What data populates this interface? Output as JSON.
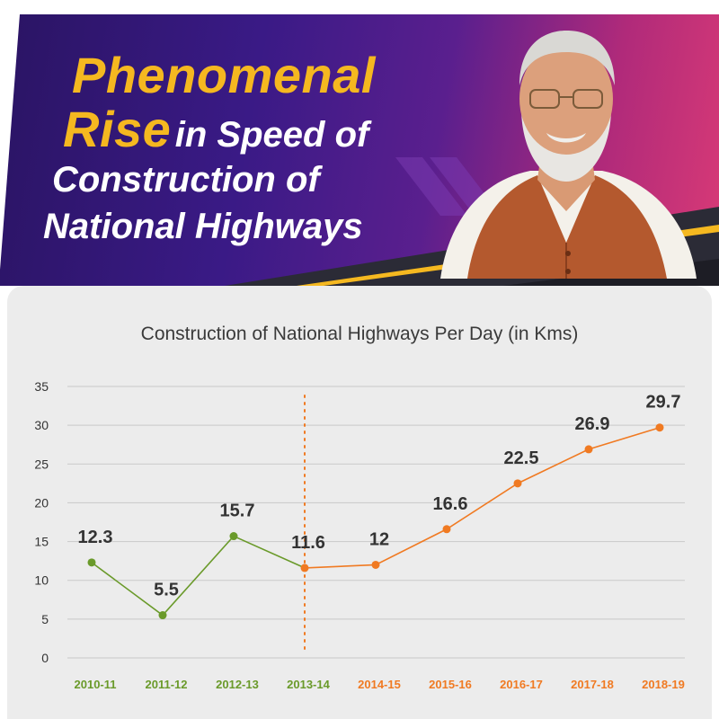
{
  "banner": {
    "title_highlight_1": "Phenomenal",
    "title_highlight_2": "Rise",
    "title_rest_2": "in Speed of",
    "title_line_3": "Construction of",
    "title_line_4": "National Highways"
  },
  "colors": {
    "banner_dark": "#2a1463",
    "banner_pink": "#d93a76",
    "title_yellow": "#f5b820",
    "series_before": "#6a9a2a",
    "series_after": "#f07a22",
    "card_bg": "#ececec"
  },
  "chart_data": {
    "type": "line",
    "title": "Construction of National Highways Per Day (in Kms)",
    "categories": [
      "2010-11",
      "2011-12",
      "2012-13",
      "2013-14",
      "2014-15",
      "2015-16",
      "2016-17",
      "2017-18",
      "2018-19"
    ],
    "series": [
      {
        "values": [
          12.3,
          5.5,
          15.7,
          11.6,
          null,
          null,
          null,
          null,
          null
        ],
        "color": "#6a9a2a"
      },
      {
        "values": [
          null,
          null,
          null,
          11.6,
          12.0,
          16.6,
          22.5,
          26.9,
          29.7
        ],
        "color": "#f07a22"
      }
    ],
    "point_labels": [
      "12.3",
      "5.5",
      "15.7",
      "11.6",
      "12",
      "16.6",
      "22.5",
      "26.9",
      "29.7"
    ],
    "category_colors": [
      "#6a9a2a",
      "#6a9a2a",
      "#6a9a2a",
      "#6a9a2a",
      "#f07a22",
      "#f07a22",
      "#f07a22",
      "#f07a22",
      "#f07a22"
    ],
    "ylim": [
      0,
      35
    ],
    "yticks": [
      0,
      5,
      10,
      15,
      20,
      25,
      30,
      35
    ],
    "divider_after_category": "2013-14",
    "grid": true,
    "legend": "none"
  }
}
